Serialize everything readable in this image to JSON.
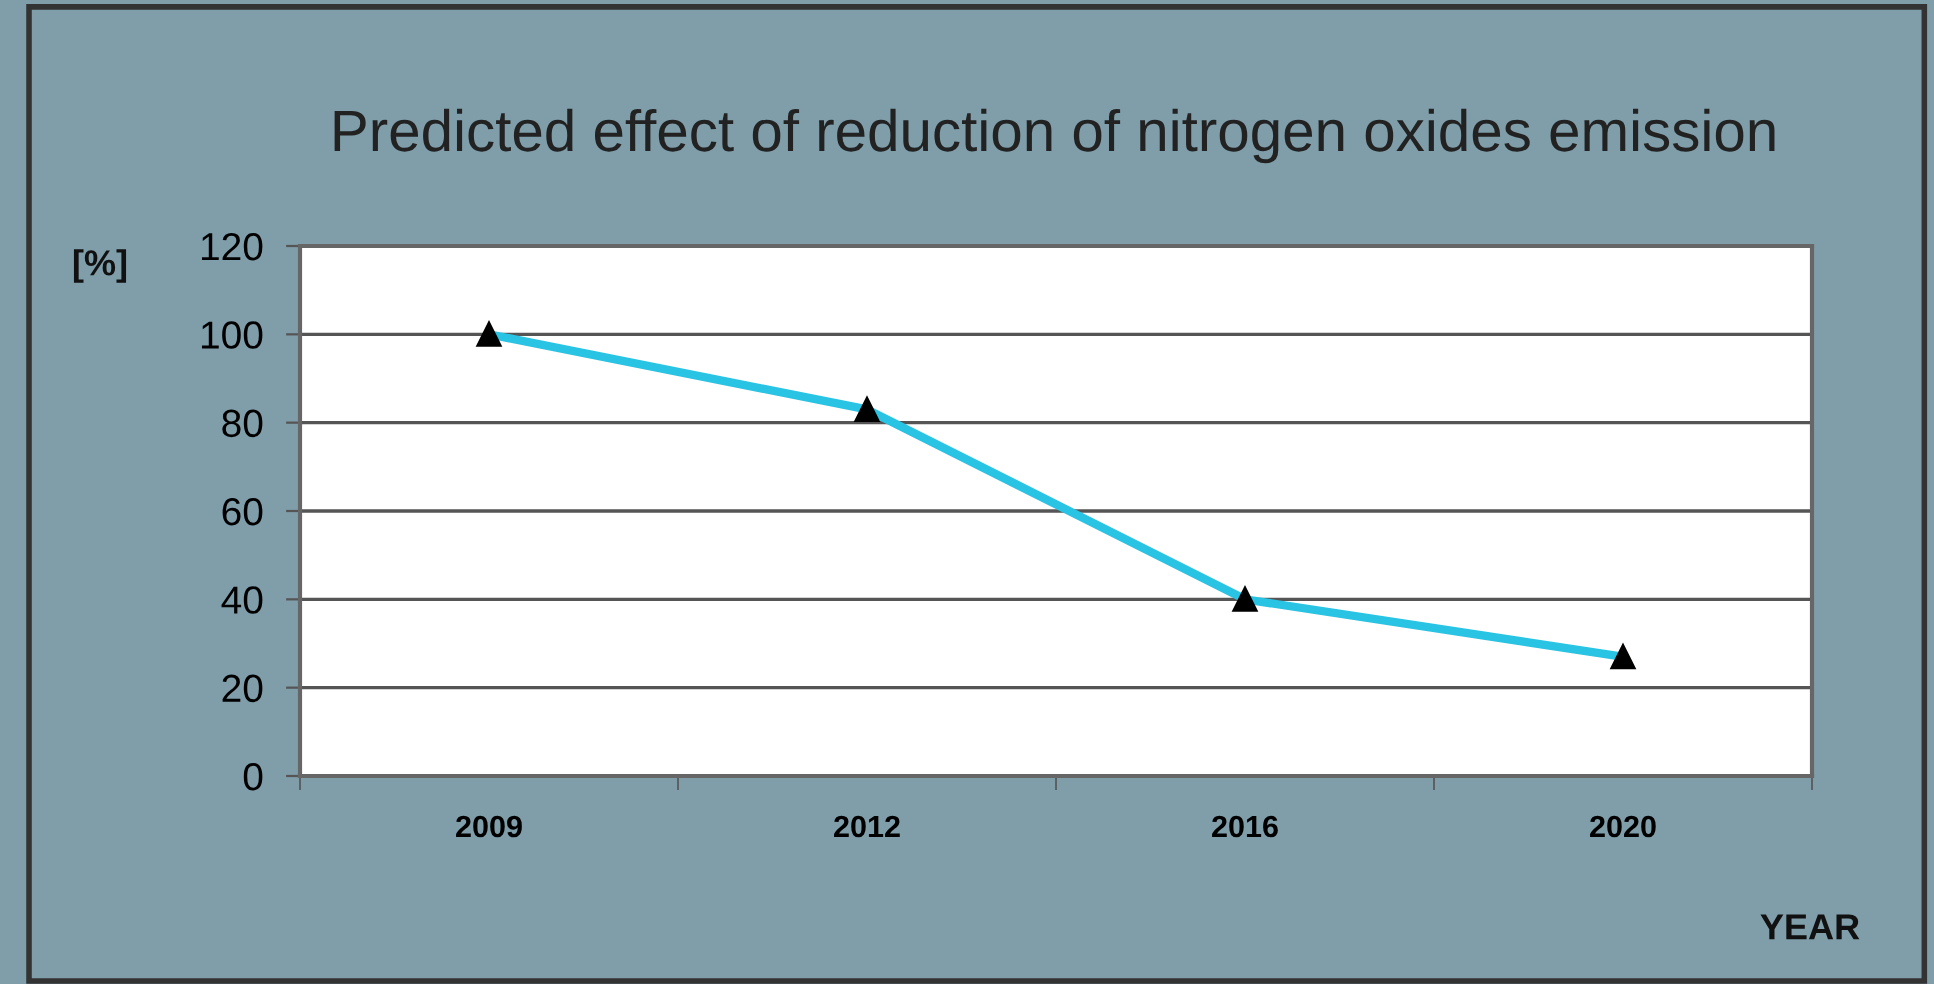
{
  "chart_data": {
    "type": "line",
    "title": "Predicted effect of reduction of nitrogen oxides emission",
    "ylabel": "[%]",
    "xlabel": "YEAR",
    "categories": [
      "2009",
      "2012",
      "2016",
      "2020"
    ],
    "series": [
      {
        "color": "#29c3e3",
        "values": [
          100,
          83,
          40,
          27
        ]
      }
    ],
    "ylim": [
      0,
      120
    ],
    "yticks": [
      0,
      20,
      40,
      60,
      80,
      100,
      120
    ],
    "grid": "y",
    "marker": "triangle",
    "line_style": "solid"
  }
}
